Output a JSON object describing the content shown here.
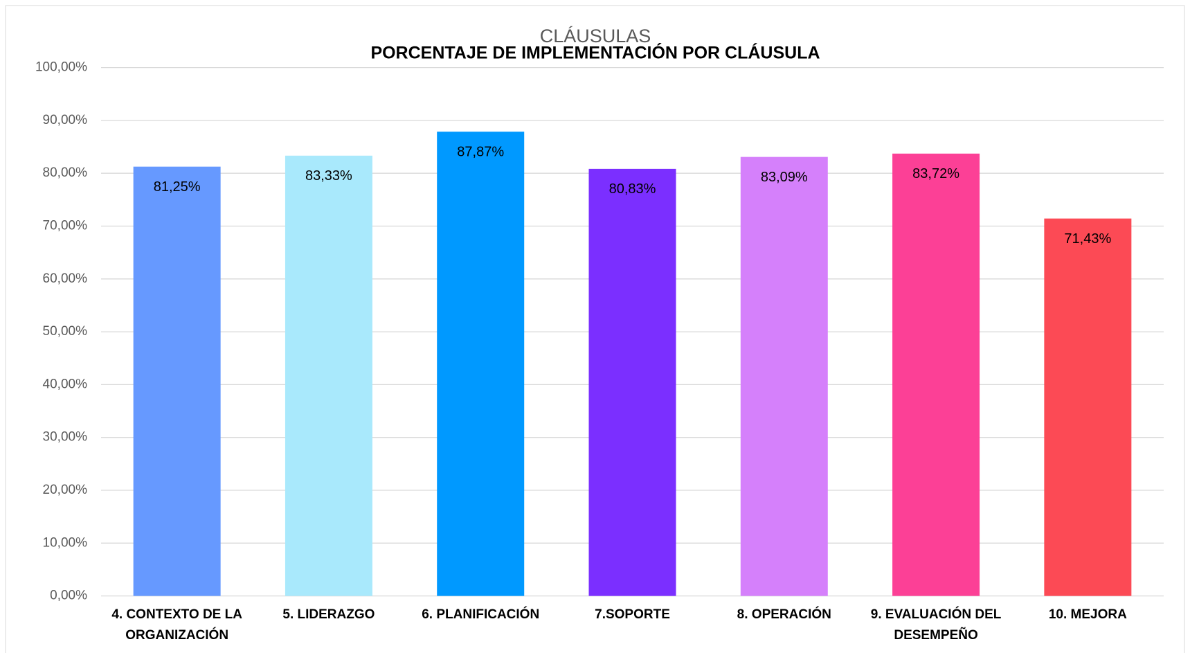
{
  "chart_data": {
    "type": "bar",
    "title": "PORCENTAJE DE IMPLEMENTACIÓN POR CLÁUSULA",
    "subtitle": "CLÁUSULAS",
    "categories": [
      "4. CONTEXTO DE LA ORGANIZACIÓN",
      "5. LIDERAZGO",
      "6. PLANIFICACIÓN",
      "7.SOPORTE",
      "8. OPERACIÓN",
      "9. EVALUACIÓN DEL DESEMPEÑO",
      "10. MEJORA"
    ],
    "values": [
      81.25,
      83.33,
      87.87,
      80.83,
      83.09,
      83.72,
      71.43
    ],
    "value_labels": [
      "81,25%",
      "83,33%",
      "87,87%",
      "80,83%",
      "83,09%",
      "83,72%",
      "71,43%"
    ],
    "colors": [
      "#6699ff",
      "#a9e9fc",
      "#0099ff",
      "#7b2fff",
      "#d580fb",
      "#fc4096",
      "#fc4a55"
    ],
    "ylim": [
      0,
      100
    ],
    "yticks": [
      {
        "value": 0,
        "label": "0,00%"
      },
      {
        "value": 10,
        "label": "10,00%"
      },
      {
        "value": 20,
        "label": "20,00%"
      },
      {
        "value": 30,
        "label": "30,00%"
      },
      {
        "value": 40,
        "label": "40,00%"
      },
      {
        "value": 50,
        "label": "50,00%"
      },
      {
        "value": 60,
        "label": "60,00%"
      },
      {
        "value": 70,
        "label": "70,00%"
      },
      {
        "value": 80,
        "label": "80,00%"
      },
      {
        "value": 90,
        "label": "90,00%"
      },
      {
        "value": 100,
        "label": "100,00%"
      }
    ],
    "grid": true
  }
}
